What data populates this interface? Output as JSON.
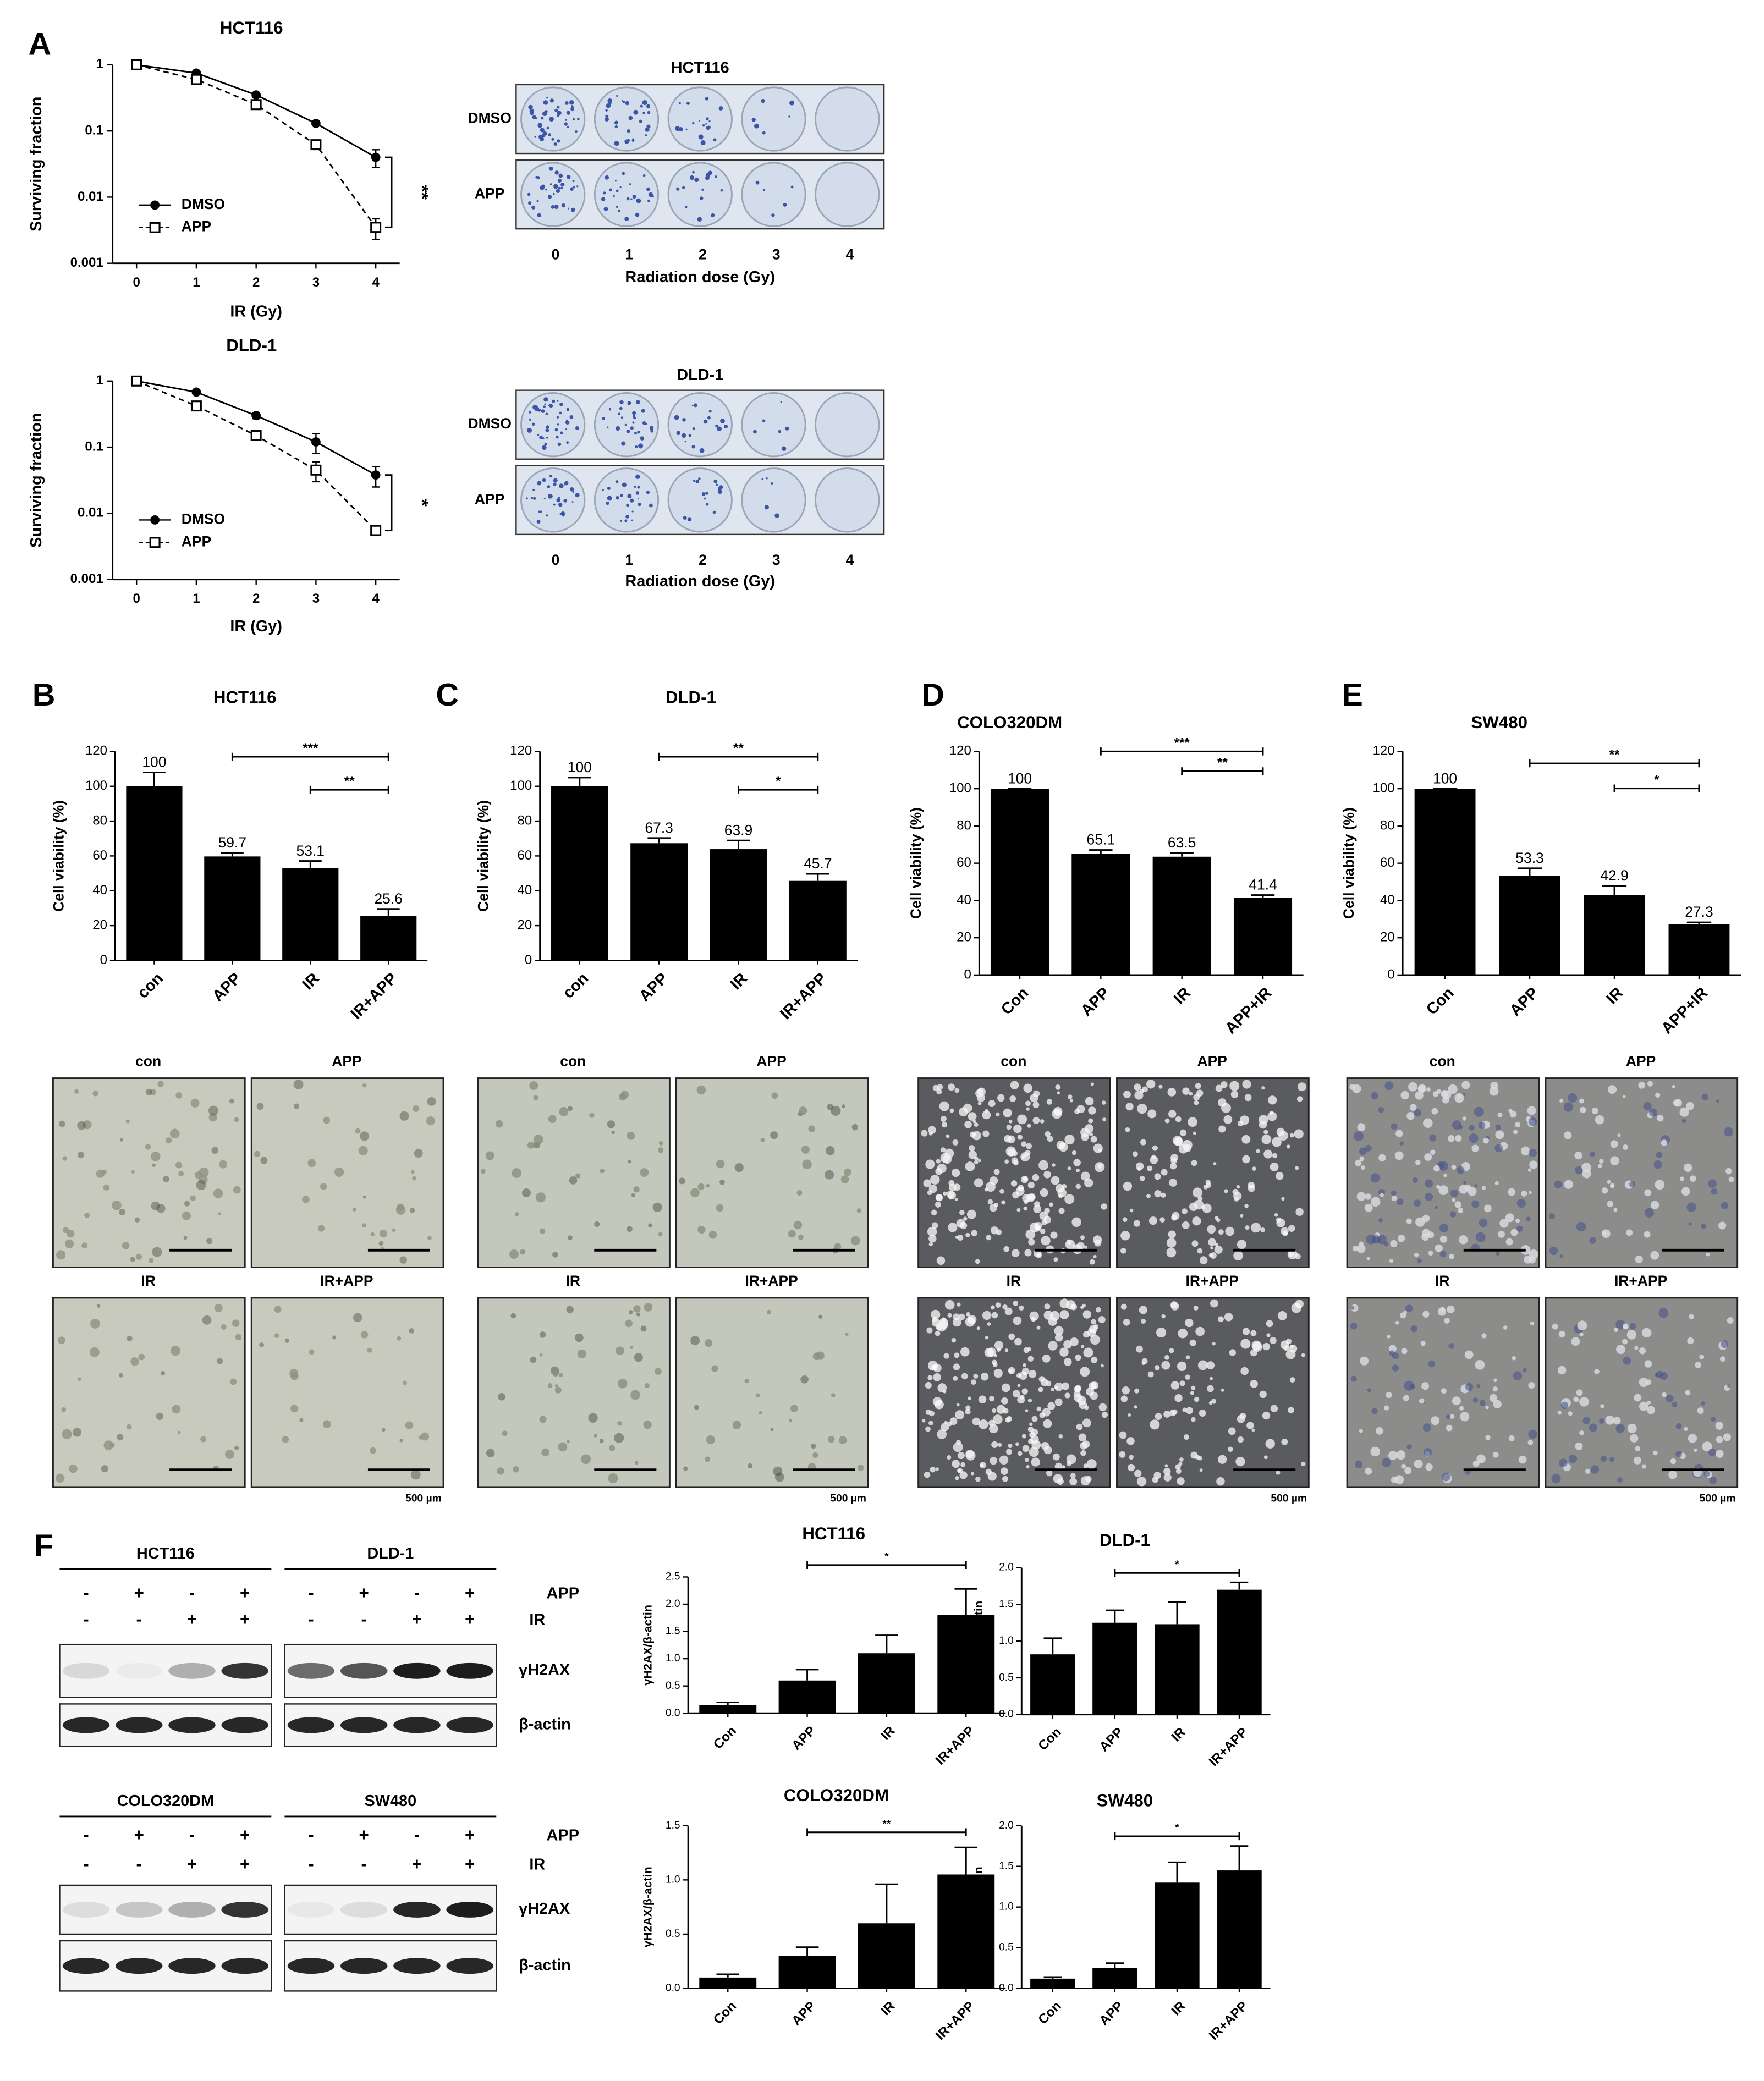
{
  "panel_labels": [
    "A",
    "B",
    "C",
    "D",
    "E",
    "F"
  ],
  "chart_data": [
    {
      "type": "line",
      "title": "HCT116",
      "x": [
        0,
        1,
        2,
        3,
        4
      ],
      "series": [
        {
          "name": "DMSO",
          "color": "#000000",
          "marker": "filled-circle",
          "line_style": "solid",
          "values": [
            1,
            0.75,
            0.35,
            0.13,
            0.04
          ],
          "errors": [
            0,
            0.05,
            0.03,
            0.01,
            0.012
          ]
        },
        {
          "name": "APP",
          "color": "#000000",
          "marker": "open-square",
          "line_style": "dashed",
          "values": [
            1,
            0.6,
            0.25,
            0.062,
            0.0035
          ],
          "errors": [
            0,
            0.05,
            0.02,
            0.006,
            0.0012
          ]
        }
      ],
      "xlim": [
        -0.4,
        4.4
      ],
      "xticks": [
        0,
        1,
        2,
        3,
        4
      ],
      "ylim": [
        0.001,
        1
      ],
      "yticks": [
        0.001,
        0.01,
        0.1,
        1
      ],
      "log_y": true,
      "xlabel": "IR (Gy)",
      "ylabel": "Surviving fraction",
      "legend": "lower left",
      "annotations": [
        {
          "text": "**"
        }
      ]
    },
    {
      "type": "line",
      "title": "DLD-1",
      "x": [
        0,
        1,
        2,
        3,
        4
      ],
      "series": [
        {
          "name": "DMSO",
          "color": "#000000",
          "marker": "filled-circle",
          "line_style": "solid",
          "values": [
            1,
            0.68,
            0.3,
            0.12,
            0.038
          ],
          "errors": [
            0,
            0.04,
            0.03,
            0.04,
            0.013
          ]
        },
        {
          "name": "APP",
          "color": "#000000",
          "marker": "open-square",
          "line_style": "dashed",
          "values": [
            1,
            0.42,
            0.15,
            0.045,
            0.0055
          ],
          "errors": [
            0,
            0.04,
            0.02,
            0.015,
            0.0008
          ]
        }
      ],
      "xlim": [
        -0.4,
        4.4
      ],
      "xticks": [
        0,
        1,
        2,
        3,
        4
      ],
      "ylim": [
        0.001,
        1
      ],
      "yticks": [
        0.001,
        0.01,
        0.1,
        1
      ],
      "log_y": true,
      "xlabel": "IR (Gy)",
      "ylabel": "Surviving fraction",
      "legend": "lower left",
      "annotations": [
        {
          "text": "*"
        }
      ]
    },
    {
      "type": "bar",
      "title": "HCT116",
      "categories": [
        "con",
        "APP",
        "IR",
        "IR+APP"
      ],
      "values": [
        100,
        59.7,
        53.1,
        25.6
      ],
      "errors": [
        8,
        2,
        4,
        4
      ],
      "color": "#000000",
      "ylim": [
        0,
        120
      ],
      "yticks": [
        0,
        20,
        40,
        60,
        80,
        100,
        120
      ],
      "ylabel": "Cell viability (%)",
      "data_labels": true,
      "annotations": [
        {
          "text": "***",
          "from": "APP",
          "to": "IR+APP"
        },
        {
          "text": "**",
          "from": "IR",
          "to": "IR+APP"
        }
      ]
    },
    {
      "type": "bar",
      "title": "DLD-1",
      "categories": [
        "con",
        "APP",
        "IR",
        "IR+APP"
      ],
      "values": [
        100,
        67.3,
        63.9,
        45.7
      ],
      "errors": [
        5,
        3,
        5,
        4
      ],
      "color": "#000000",
      "ylim": [
        0,
        120
      ],
      "yticks": [
        0,
        20,
        40,
        60,
        80,
        100,
        120
      ],
      "ylabel": "Cell viability (%)",
      "data_labels": true,
      "annotations": [
        {
          "text": "**",
          "from": "APP",
          "to": "IR+APP"
        },
        {
          "text": "*",
          "from": "IR",
          "to": "IR+APP"
        }
      ]
    },
    {
      "type": "bar",
      "title": "COLO320DM",
      "categories": [
        "Con",
        "APP",
        "IR",
        "APP+IR"
      ],
      "values": [
        100,
        65.1,
        63.5,
        41.4
      ],
      "errors": [
        0,
        2,
        2,
        1.5
      ],
      "color": "#000000",
      "ylim": [
        0,
        120
      ],
      "yticks": [
        0,
        20,
        40,
        60,
        80,
        100,
        120
      ],
      "ylabel": "Cell viability (%)",
      "data_labels": true,
      "annotations": [
        {
          "text": "***",
          "from": "APP",
          "to": "APP+IR"
        },
        {
          "text": "**",
          "from": "IR",
          "to": "APP+IR"
        }
      ]
    },
    {
      "type": "bar",
      "title": "SW480",
      "categories": [
        "Con",
        "APP",
        "IR",
        "APP+IR"
      ],
      "values": [
        100,
        53.3,
        42.9,
        27.3
      ],
      "errors": [
        0,
        4,
        5,
        1
      ],
      "color": "#000000",
      "ylim": [
        0,
        120
      ],
      "yticks": [
        0,
        20,
        40,
        60,
        80,
        100,
        120
      ],
      "ylabel": "Cell viability (%)",
      "data_labels": true,
      "annotations": [
        {
          "text": "**",
          "from": "APP",
          "to": "APP+IR"
        },
        {
          "text": "*",
          "from": "IR",
          "to": "APP+IR"
        }
      ]
    },
    {
      "type": "bar",
      "title": "HCT116",
      "categories": [
        "Con",
        "APP",
        "IR",
        "IR+APP"
      ],
      "values": [
        0.15,
        0.6,
        1.1,
        1.8
      ],
      "errors": [
        0.05,
        0.2,
        0.33,
        0.48
      ],
      "color": "#000000",
      "ylim": [
        0,
        2.5
      ],
      "yticks": [
        {
          "value": 0,
          "label": "0.0"
        },
        0.5,
        {
          "value": 1,
          "label": "1.0"
        },
        1.5,
        {
          "value": 2,
          "label": "2.0"
        },
        2.5
      ],
      "ylabel": "γH2AX/β-actin",
      "annotations": [
        {
          "text": "*",
          "from": "APP",
          "to": "IR+APP"
        }
      ]
    },
    {
      "type": "bar",
      "title": "DLD-1",
      "categories": [
        "Con",
        "APP",
        "IR",
        "IR+APP"
      ],
      "values": [
        0.82,
        1.25,
        1.23,
        1.7
      ],
      "errors": [
        0.22,
        0.17,
        0.3,
        0.1
      ],
      "color": "#000000",
      "ylim": [
        0,
        2
      ],
      "yticks": [
        {
          "value": 0,
          "label": "0.0"
        },
        0.5,
        {
          "value": 1,
          "label": "1.0"
        },
        1.5,
        {
          "value": 2,
          "label": "2.0"
        }
      ],
      "ylabel": "γH2AX/β-actin",
      "annotations": [
        {
          "text": "*",
          "from": "APP",
          "to": "IR+APP"
        }
      ]
    },
    {
      "type": "bar",
      "title": "COLO320DM",
      "categories": [
        "Con",
        "APP",
        "IR",
        "IR+APP"
      ],
      "values": [
        0.1,
        0.3,
        0.6,
        1.05
      ],
      "errors": [
        0.03,
        0.08,
        0.36,
        0.25
      ],
      "color": "#000000",
      "ylim": [
        0,
        1.5
      ],
      "yticks": [
        {
          "value": 0,
          "label": "0.0"
        },
        0.5,
        {
          "value": 1,
          "label": "1.0"
        },
        1.5
      ],
      "ylabel": "γH2AX/β-actin",
      "annotations": [
        {
          "text": "**",
          "from": "APP",
          "to": "IR+APP"
        }
      ]
    },
    {
      "type": "bar",
      "title": "SW480",
      "categories": [
        "Con",
        "APP",
        "IR",
        "IR+APP"
      ],
      "values": [
        0.12,
        0.25,
        1.3,
        1.45
      ],
      "errors": [
        0.02,
        0.06,
        0.25,
        0.3
      ],
      "color": "#000000",
      "ylim": [
        0,
        2
      ],
      "yticks": [
        {
          "value": 0,
          "label": "0.0"
        },
        0.5,
        {
          "value": 1,
          "label": "1.0"
        },
        1.5,
        {
          "value": 2,
          "label": "2.0"
        }
      ],
      "ylabel": "γH2AX/β-actin",
      "annotations": [
        {
          "text": "*",
          "from": "APP",
          "to": "IR+APP"
        }
      ]
    }
  ],
  "colony_plates": [
    {
      "title": "HCT116",
      "rows": [
        "DMSO",
        "APP"
      ],
      "doses": [
        "0",
        "1",
        "2",
        "3",
        "4"
      ],
      "xlabel": "Radiation dose (Gy)"
    },
    {
      "title": "DLD-1",
      "rows": [
        "DMSO",
        "APP"
      ],
      "doses": [
        "0",
        "1",
        "2",
        "3",
        "4"
      ],
      "xlabel": "Radiation dose (Gy)"
    }
  ],
  "micrographs": [
    {
      "labels": [
        "con",
        "APP",
        "IR",
        "IR+APP"
      ],
      "scale_bar": "500 µm"
    },
    {
      "labels": [
        "con",
        "APP",
        "IR",
        "IR+APP"
      ],
      "scale_bar": "500 µm"
    },
    {
      "labels": [
        "con",
        "APP",
        "IR",
        "IR+APP"
      ],
      "scale_bar": "500 µm"
    },
    {
      "labels": [
        "con",
        "APP",
        "IR",
        "IR+APP"
      ],
      "scale_bar": "500 µm"
    }
  ],
  "western_blots": {
    "blocks": [
      "HCT116",
      "DLD-1",
      "COLO320DM",
      "SW480"
    ],
    "treatments": [
      {
        "name": "APP",
        "signs": [
          "-",
          "+",
          "-",
          "+"
        ]
      },
      {
        "name": "IR",
        "signs": [
          "-",
          "-",
          "+",
          "+"
        ]
      }
    ],
    "proteins": [
      "γH2AX",
      "β-actin"
    ]
  }
}
